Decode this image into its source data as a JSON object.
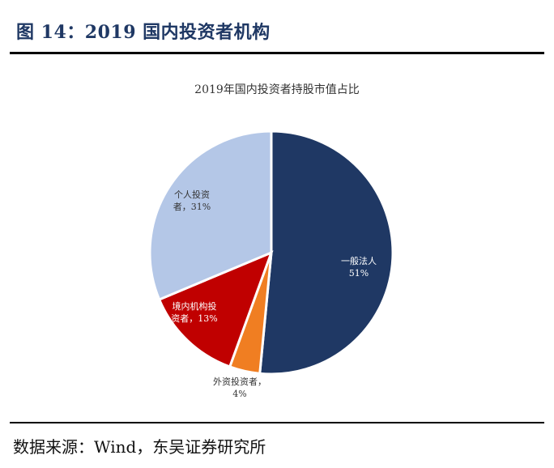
{
  "figure": {
    "title": "图 14：2019 国内投资者机构",
    "source": "数据来源：Wind，东吴证券研究所"
  },
  "chart_data": {
    "type": "pie",
    "title": "2019年国内投资者持股市值占比",
    "slices": [
      {
        "name": "一般法人",
        "value": 51,
        "label_line1": "一般法人",
        "label_line2": "51%",
        "color": "#1f3864",
        "text_color": "#ffffff"
      },
      {
        "name": "外资投资者",
        "value": 4,
        "label_line1": "外资投资者，",
        "label_line2": "4%",
        "color": "#f07e22",
        "text_color": "#333333"
      },
      {
        "name": "境内机构投资者",
        "value": 13,
        "label_line1": "境内机构投",
        "label_line2": "资者，13%",
        "color": "#c00000",
        "text_color": "#ffffff"
      },
      {
        "name": "个人投资者",
        "value": 31,
        "label_line1": "个人投资",
        "label_line2": "者，31%",
        "color": "#b4c7e7",
        "text_color": "#333333"
      }
    ]
  }
}
